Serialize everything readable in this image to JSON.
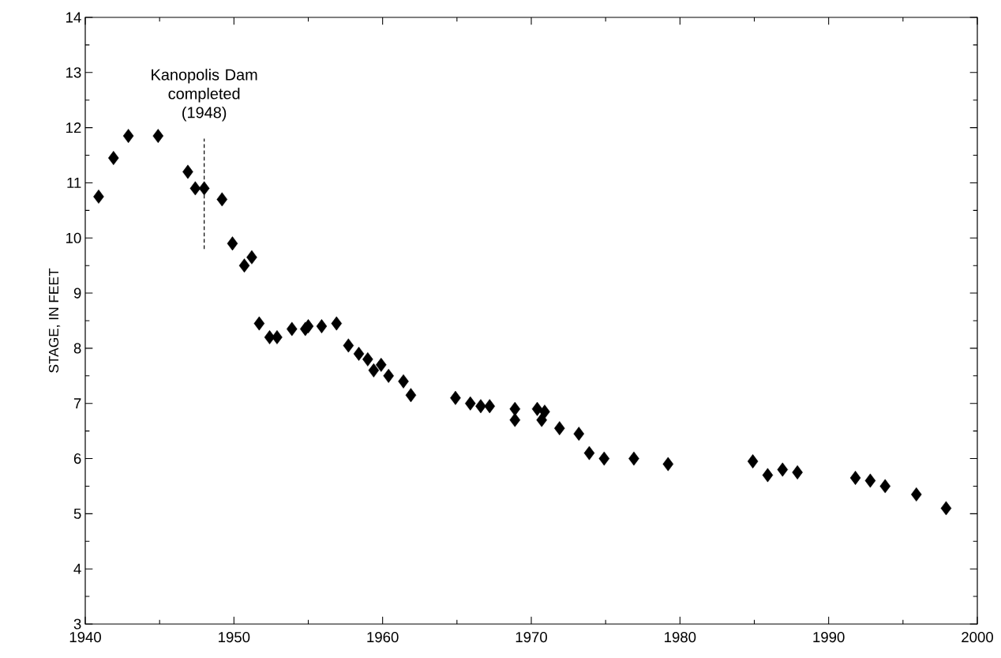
{
  "chart_data": {
    "type": "scatter",
    "ylabel": "STAGE, IN FEET",
    "x": [
      1940.9,
      1941.9,
      1942.9,
      1944.9,
      1946.9,
      1947.4,
      1948.0,
      1949.2,
      1949.9,
      1950.7,
      1951.2,
      1951.7,
      1952.4,
      1952.9,
      1953.9,
      1954.8,
      1955.0,
      1955.9,
      1956.9,
      1957.7,
      1958.4,
      1959.0,
      1959.4,
      1959.9,
      1960.4,
      1961.4,
      1961.9,
      1964.9,
      1965.9,
      1966.6,
      1967.2,
      1968.9,
      1968.9,
      1970.4,
      1970.9,
      1970.7,
      1971.9,
      1973.2,
      1973.9,
      1974.9,
      1976.9,
      1979.2,
      1984.9,
      1985.9,
      1986.9,
      1987.9,
      1991.8,
      1992.8,
      1993.8,
      1995.9,
      1997.9
    ],
    "values": [
      10.75,
      11.45,
      11.85,
      11.85,
      11.2,
      10.9,
      10.9,
      10.7,
      9.9,
      9.5,
      9.65,
      8.45,
      8.2,
      8.2,
      8.35,
      8.35,
      8.4,
      8.4,
      8.45,
      8.05,
      7.9,
      7.8,
      7.6,
      7.7,
      7.5,
      7.4,
      7.15,
      7.1,
      7.0,
      6.95,
      6.95,
      6.9,
      6.7,
      6.9,
      6.85,
      6.7,
      6.55,
      6.45,
      6.1,
      6.0,
      6.0,
      5.9,
      5.95,
      5.7,
      5.8,
      5.75,
      5.65,
      5.6,
      5.5,
      5.35,
      5.1
    ],
    "color": "#000000",
    "marker": "diamond",
    "xlim": [
      1940,
      2000
    ],
    "xticks": [
      1940,
      1950,
      1960,
      1970,
      1980,
      1990,
      2000
    ],
    "ylim": [
      3,
      14
    ],
    "yticks": [
      3,
      4,
      5,
      6,
      7,
      8,
      9,
      10,
      11,
      12,
      13,
      14
    ],
    "ref_lines": [
      {
        "axis": "x",
        "value": 1948,
        "label": "Kanopolis Dam completed (1948)",
        "line_style": "dashed",
        "color": "#000000"
      }
    ]
  }
}
